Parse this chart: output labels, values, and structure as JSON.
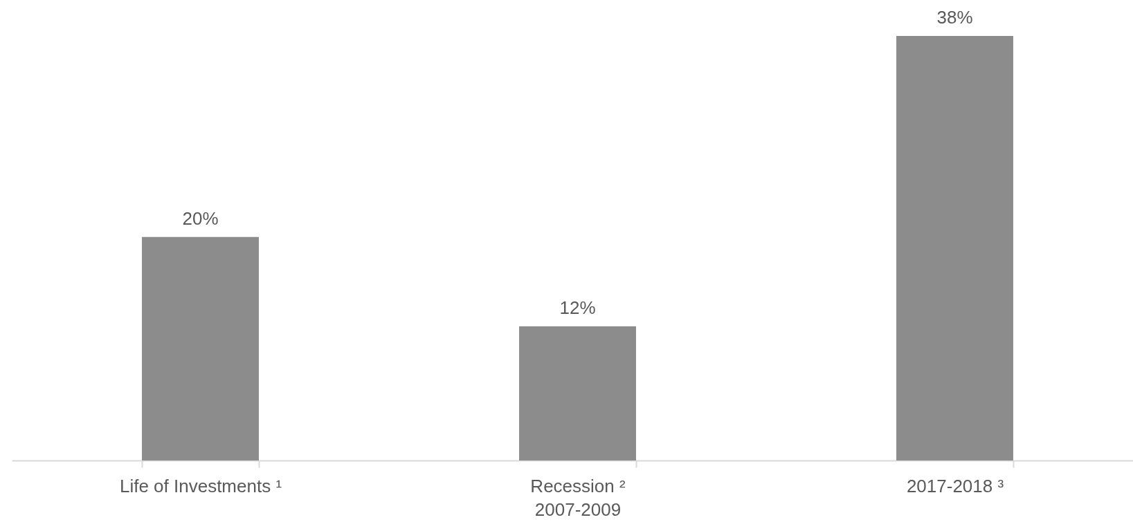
{
  "chart_data": {
    "type": "bar",
    "categories": [
      "Life of Investments ¹",
      "Recession ²\n2007-2009",
      "2017-2018 ³"
    ],
    "values": [
      20,
      12,
      38
    ],
    "value_labels": [
      "20%",
      "12%",
      "38%"
    ],
    "color": "#8c8c8c"
  }
}
